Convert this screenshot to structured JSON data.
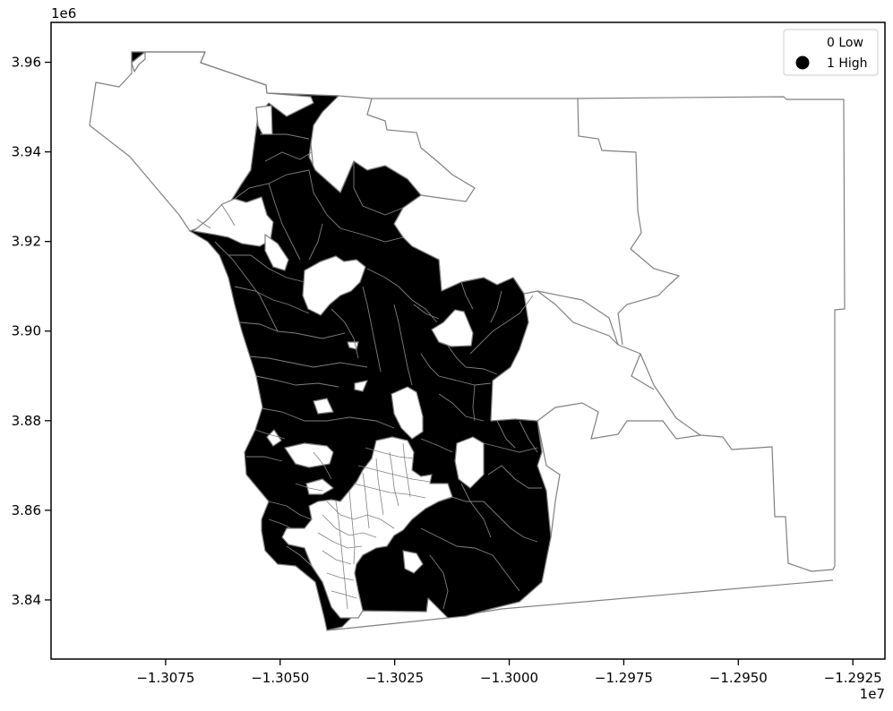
{
  "chart_data": {
    "type": "choropleth map",
    "xlim": [
      -13100000.0,
      -12918000.0
    ],
    "ylim": [
      3826800.0,
      3968900.0
    ],
    "x_ticks": [
      {
        "value": -13075000.0,
        "label": "−1.3075"
      },
      {
        "value": -13050000.0,
        "label": "−1.3050"
      },
      {
        "value": -13025000.0,
        "label": "−1.3025"
      },
      {
        "value": -13000000.0,
        "label": "−1.3000"
      },
      {
        "value": -12975000.0,
        "label": "−1.2975"
      },
      {
        "value": -12950000.0,
        "label": "−1.2950"
      },
      {
        "value": -12925000.0,
        "label": "−1.2925"
      }
    ],
    "y_ticks": [
      {
        "value": 3840000.0,
        "label": "3.84"
      },
      {
        "value": 3860000.0,
        "label": "3.86"
      },
      {
        "value": 3880000.0,
        "label": "3.88"
      },
      {
        "value": 3900000.0,
        "label": "3.90"
      },
      {
        "value": 3920000.0,
        "label": "3.92"
      },
      {
        "value": 3940000.0,
        "label": "3.94"
      },
      {
        "value": 3960000.0,
        "label": "3.96"
      }
    ],
    "x_offset_label": "1e7",
    "y_offset_label": "1e6",
    "legend": {
      "position": "upper right",
      "entries": [
        {
          "label": "0 Low",
          "value": 0,
          "color": "#ffffff"
        },
        {
          "label": "1 High",
          "value": 1,
          "color": "#000000"
        }
      ]
    },
    "colors": {
      "low": "#ffffff",
      "high": "#000000",
      "edge": "#808080"
    }
  }
}
